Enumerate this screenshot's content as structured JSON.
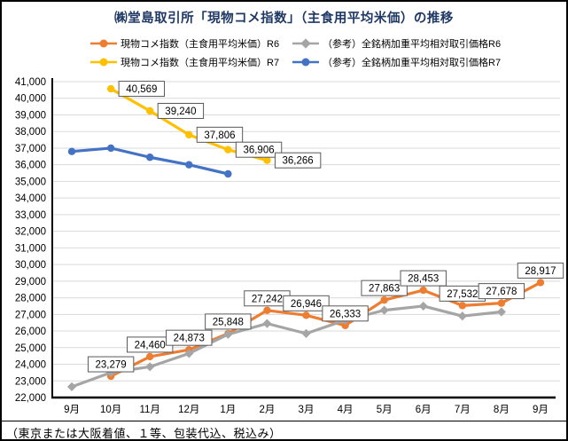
{
  "chart_title": "㈱堂島取引所「現物コメ指数」（主食用平均米価）の推移",
  "footnote": "（東京または大阪着値、１等、包装代込、税込み）",
  "legend": {
    "items": [
      {
        "label": "現物コメ指数（主食用平均米価）R6",
        "color": "#ED7D31",
        "marker": "circle"
      },
      {
        "label": "（参考）全銘柄加重平均相対取引価格R6",
        "color": "#A5A5A5",
        "marker": "diamond"
      },
      {
        "label": "現物コメ指数（主食用平均米価）R7",
        "color": "#FFC000",
        "marker": "circle"
      },
      {
        "label": "（参考）全銘柄加重平均相対取引価格R7",
        "color": "#4472C4",
        "marker": "circle"
      }
    ]
  },
  "chart_data": {
    "type": "line",
    "title": "㈱堂島取引所「現物コメ指数」（主食用平均米価）の推移",
    "categories": [
      "9月",
      "10月",
      "11月",
      "12月",
      "1月",
      "2月",
      "3月",
      "4月",
      "5月",
      "6月",
      "7月",
      "8月",
      "9月"
    ],
    "ylim": [
      22000,
      41000
    ],
    "ytick_step": 1000,
    "ytick_labels": [
      "22,000",
      "23,000",
      "24,000",
      "25,000",
      "26,000",
      "27,000",
      "28,000",
      "29,000",
      "30,000",
      "31,000",
      "32,000",
      "33,000",
      "34,000",
      "35,000",
      "36,000",
      "37,000",
      "38,000",
      "39,000",
      "40,000",
      "41,000"
    ],
    "grid": true,
    "legend_position": "top",
    "series": [
      {
        "name": "現物コメ指数（主食用平均米価）R6",
        "color": "#ED7D31",
        "marker": "circle",
        "data_labels": true,
        "label_position": "above",
        "values": [
          null,
          23279,
          24460,
          24873,
          25848,
          27242,
          26946,
          26333,
          27863,
          28453,
          27532,
          27678,
          28917
        ]
      },
      {
        "name": "（参考）全銘柄加重平均相対取引価格R6",
        "color": "#A5A5A5",
        "marker": "diamond",
        "data_labels": false,
        "values": [
          22650,
          23500,
          23850,
          24650,
          25800,
          26450,
          25850,
          26650,
          27250,
          27500,
          26900,
          27150,
          null
        ]
      },
      {
        "name": "現物コメ指数（主食用平均米価）R7",
        "color": "#FFC000",
        "marker": "circle",
        "data_labels": true,
        "label_position": "right",
        "values": [
          null,
          40569,
          39240,
          37806,
          36906,
          36266,
          null,
          null,
          null,
          null,
          null,
          null,
          null
        ]
      },
      {
        "name": "（参考）全銘柄加重平均相対取引価格R7",
        "color": "#4472C4",
        "marker": "circle",
        "data_labels": false,
        "values": [
          36800,
          37000,
          36450,
          36000,
          35450,
          null,
          null,
          null,
          null,
          null,
          null,
          null,
          null
        ]
      }
    ]
  }
}
